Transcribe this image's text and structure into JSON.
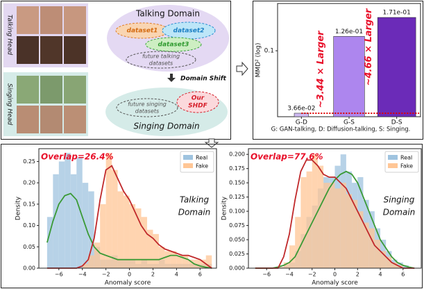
{
  "diagram": {
    "talking_head": "Talking Head",
    "singing_head": "Singing Head",
    "talking_domain": "Talking Domain",
    "dataset1": "dataset1",
    "dataset2": "dataset2",
    "dataset3": "dataset3",
    "future_talking": [
      "future talking",
      "datasets"
    ],
    "domain_shift": "Domain Shift",
    "future_singing": [
      "future singing",
      "datasets"
    ],
    "our": [
      "Our",
      "SHDF"
    ],
    "singing_domain": "Singing Domain"
  },
  "chart_data": [
    {
      "type": "bar",
      "categories": [
        "G-D",
        "G-S",
        "D-S"
      ],
      "values": [
        0.0366,
        0.126,
        0.171
      ],
      "value_labels": [
        "3.66e-02",
        "1.26e-01",
        "1.71e-01"
      ],
      "colors": [
        "#cdb8f2",
        "#ad86ee",
        "#6b2bb8"
      ],
      "ylabel": "MMD² (log)",
      "log_y": true,
      "ylim": [
        0.0346,
        0.214
      ],
      "yticks": [
        0.1
      ],
      "annotations": [
        "~3.44 × Larger",
        "~4.66 × Larger"
      ],
      "annotation_color": "#e8102a",
      "reference_line_color": "#e00000",
      "caption": "G: GAN-talking, D: Diffusion-talking, S: Singing."
    },
    {
      "type": "histogram",
      "annotation": "Overlap=26.4%",
      "domain_label": [
        "Talking",
        "Domain"
      ],
      "xlabel": "Anomaly score",
      "ylabel": "Density",
      "legend": "upper right",
      "bins": [
        -7,
        -6.5,
        -6,
        -5.5,
        -5,
        -4.5,
        -4,
        -3.5,
        -3,
        -2.5,
        -2,
        -1.5,
        -1,
        -0.5,
        0,
        0.5,
        1,
        1.5,
        2,
        2.5,
        3,
        3.5,
        4,
        4.5,
        5,
        5.5,
        6,
        6.5,
        7
      ],
      "series": [
        {
          "name": "Real",
          "color": "#9fc3df",
          "values": [
            0.12,
            0.22,
            0.25,
            0.27,
            0.22,
            0.26,
            0.2,
            0.18,
            0.05,
            0.02,
            0.02,
            0.03,
            0.02,
            0.02,
            0.02,
            0.01,
            0.02,
            0.01,
            0.01,
            0.02,
            0.01,
            0.01,
            0.01,
            0.01,
            0.01,
            0.01,
            0.01,
            0.01
          ]
        },
        {
          "name": "Fake",
          "color": "#ffc696",
          "values": [
            0,
            0,
            0,
            0,
            0,
            0,
            0.01,
            0.03,
            0.06,
            0.15,
            0.27,
            0.23,
            0.18,
            0.17,
            0.15,
            0.14,
            0.12,
            0.09,
            0.08,
            0.05,
            0.04,
            0.04,
            0.03,
            0.03,
            0.02,
            0.02,
            0.02,
            0.03
          ]
        }
      ],
      "kde_x": [
        -7,
        -6.5,
        -6,
        -5.5,
        -5,
        -4.5,
        -4,
        -3.5,
        -3,
        -2.5,
        -2,
        -1.5,
        -1,
        -0.5,
        0,
        0.5,
        1,
        1.5,
        2,
        2.5,
        3,
        3.5,
        4,
        4.5,
        5,
        5.5,
        6,
        6.5,
        7
      ],
      "kde": [
        {
          "color": "#3a9a35",
          "values": [
            0.06,
            0.11,
            0.15,
            0.17,
            0.175,
            0.16,
            0.12,
            0.08,
            0.05,
            0.035,
            0.03,
            0.025,
            0.02,
            0.02,
            0.02,
            0.02,
            0.02,
            0.02,
            0.02,
            0.02,
            0.025,
            0.03,
            0.03,
            0.025,
            0.02,
            0.01,
            0.005,
            0.002,
            0
          ]
        },
        {
          "color": "#c0282a",
          "values": [
            0,
            0,
            0,
            0,
            0,
            0,
            0.005,
            0.02,
            0.07,
            0.16,
            0.23,
            0.24,
            0.21,
            0.18,
            0.16,
            0.13,
            0.1,
            0.08,
            0.07,
            0.055,
            0.045,
            0.04,
            0.035,
            0.03,
            0.03,
            0.025,
            0.02,
            0.01,
            0
          ]
        }
      ],
      "xlim": [
        -7.7,
        7.4
      ],
      "ylim": [
        0,
        0.28
      ],
      "xticks": [
        {
          "value": -6,
          "label": "−6"
        },
        {
          "value": -4,
          "label": "−4"
        },
        {
          "value": -2,
          "label": "−2"
        },
        0,
        2,
        4,
        6
      ],
      "yticks": [
        {
          "value": 0,
          "label": "0.00"
        },
        0.05,
        {
          "value": 0.1,
          "label": "0.10"
        },
        0.15,
        {
          "value": 0.2,
          "label": "0.20"
        },
        0.25
      ]
    },
    {
      "type": "histogram",
      "annotation": "Overlap=77.6%",
      "domain_label": [
        "Singing",
        "Domain"
      ],
      "xlabel": "Anomaly score",
      "ylabel": "Density",
      "legend": "upper right",
      "bins": [
        -7,
        -6.5,
        -6,
        -5.5,
        -5,
        -4.5,
        -4,
        -3.5,
        -3,
        -2.5,
        -2,
        -1.5,
        -1,
        -0.5,
        0,
        0.5,
        1,
        1.5,
        2,
        2.5,
        3,
        3.5,
        4,
        4.5,
        5,
        5.5,
        6,
        6.5,
        7
      ],
      "series": [
        {
          "name": "Real",
          "color": "#9fc3df",
          "values": [
            0,
            0,
            0,
            0,
            0.002,
            0.005,
            0.01,
            0.03,
            0.06,
            0.09,
            0.11,
            0.14,
            0.16,
            0.16,
            0.18,
            0.2,
            0.17,
            0.15,
            0.16,
            0.12,
            0.1,
            0.07,
            0.05,
            0.03,
            0.015,
            0.01,
            0.005,
            0
          ]
        },
        {
          "name": "Fake",
          "color": "#ffc696",
          "values": [
            0,
            0,
            0,
            0,
            0.002,
            0.01,
            0.04,
            0.09,
            0.16,
            0.17,
            0.2,
            0.18,
            0.15,
            0.15,
            0.14,
            0.15,
            0.13,
            0.12,
            0.1,
            0.08,
            0.07,
            0.05,
            0.03,
            0.02,
            0.01,
            0.005,
            0,
            0
          ]
        }
      ],
      "kde_x": [
        -7,
        -6.5,
        -6,
        -5.5,
        -5,
        -4.5,
        -4,
        -3.5,
        -3,
        -2.5,
        -2,
        -1.5,
        -1,
        -0.5,
        0,
        0.5,
        1,
        1.5,
        2,
        2.5,
        3,
        3.5,
        4,
        4.5,
        5,
        5.5,
        6,
        6.5,
        7
      ],
      "kde": [
        {
          "color": "#3a9a35",
          "values": [
            0,
            0,
            0,
            0,
            0.002,
            0.005,
            0.01,
            0.02,
            0.04,
            0.06,
            0.08,
            0.1,
            0.12,
            0.14,
            0.155,
            0.165,
            0.17,
            0.165,
            0.15,
            0.125,
            0.1,
            0.075,
            0.05,
            0.035,
            0.02,
            0.01,
            0.005,
            0.002,
            0
          ]
        },
        {
          "color": "#c0282a",
          "values": [
            0,
            0,
            0,
            0,
            0,
            0.02,
            0.06,
            0.12,
            0.17,
            0.19,
            0.19,
            0.18,
            0.165,
            0.16,
            0.16,
            0.15,
            0.14,
            0.12,
            0.1,
            0.08,
            0.06,
            0.04,
            0.03,
            0.02,
            0.01,
            0.005,
            0,
            0,
            0
          ]
        }
      ],
      "xlim": [
        -7.6,
        7.6
      ],
      "ylim": [
        0,
        0.21
      ],
      "xticks": [
        {
          "value": -6,
          "label": "−6"
        },
        {
          "value": -4,
          "label": "−4"
        },
        {
          "value": -2,
          "label": "−2"
        },
        0,
        2,
        4,
        6
      ],
      "yticks": [
        {
          "value": 0,
          "label": "0.000"
        },
        0.025,
        {
          "value": 0.05,
          "label": "0.050"
        },
        0.075,
        {
          "value": 0.1,
          "label": "0.100"
        },
        0.125,
        {
          "value": 0.15,
          "label": "0.150"
        },
        0.175,
        {
          "value": 0.2,
          "label": "0.200"
        }
      ]
    }
  ]
}
